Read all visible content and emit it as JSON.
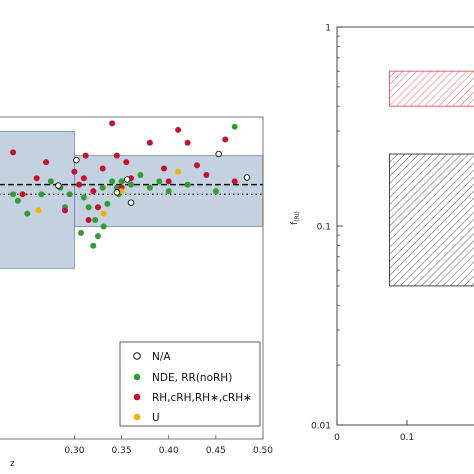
{
  "chart_data": [
    {
      "type": "scatter",
      "xlabel": "z",
      "xlim": [
        0.22,
        0.5
      ],
      "ylim": [
        0,
        1
      ],
      "x_ticks": [
        "0.30",
        "0.35",
        "0.40",
        "0.45",
        "0.50"
      ],
      "x_tick_values": [
        0.3,
        0.35,
        0.4,
        0.45,
        0.5
      ],
      "shaded_regions": [
        {
          "x": [
            0.22,
            0.3
          ],
          "y": [
            0.53,
            0.955
          ]
        },
        {
          "x": [
            0.3,
            0.5
          ],
          "y": [
            0.66,
            0.88
          ]
        }
      ],
      "reference_lines": [
        {
          "style": "dashed",
          "y": 0.79
        },
        {
          "style": "dotted",
          "y": 0.76
        }
      ],
      "legend": {
        "placement": "bottom-right",
        "entries": [
          "N/A",
          "NDE, RR(noRH)",
          "RH,cRH,RH∗,cRH∗",
          "U"
        ]
      },
      "series": [
        {
          "name": "N/A",
          "color": "#ffffff",
          "marker": "open-circle",
          "x": [
            0.302,
            0.356,
            0.36,
            0.453,
            0.483,
            0.345,
            0.283
          ],
          "y": [
            0.866,
            0.806,
            0.734,
            0.885,
            0.812,
            0.766,
            0.787
          ]
        },
        {
          "name": "NDE, RR(noRH)",
          "color": "#2e9e2e",
          "marker": "filled-circle",
          "x": [
            0.235,
            0.24,
            0.25,
            0.265,
            0.275,
            0.285,
            0.29,
            0.295,
            0.305,
            0.31,
            0.315,
            0.32,
            0.325,
            0.33,
            0.335,
            0.34,
            0.345,
            0.35,
            0.36,
            0.37,
            0.38,
            0.39,
            0.4,
            0.42,
            0.45,
            0.47,
            0.307,
            0.322,
            0.331,
            0.347
          ],
          "y": [
            0.76,
            0.74,
            0.7,
            0.76,
            0.8,
            0.78,
            0.72,
            0.76,
            0.79,
            0.75,
            0.72,
            0.6,
            0.63,
            0.78,
            0.73,
            0.8,
            0.78,
            0.8,
            0.79,
            0.82,
            0.78,
            0.8,
            0.77,
            0.79,
            0.77,
            0.97,
            0.64,
            0.68,
            0.66,
            0.76
          ]
        },
        {
          "name": "RH,cRH,RH∗,cRH∗",
          "color": "#c8102e",
          "marker": "filled-circle",
          "x": [
            0.235,
            0.245,
            0.26,
            0.27,
            0.29,
            0.3,
            0.305,
            0.31,
            0.315,
            0.32,
            0.33,
            0.34,
            0.35,
            0.36,
            0.38,
            0.4,
            0.41,
            0.42,
            0.43,
            0.44,
            0.46,
            0.47,
            0.312,
            0.325,
            0.355,
            0.395,
            0.345
          ],
          "y": [
            0.89,
            0.76,
            0.81,
            0.86,
            0.71,
            0.83,
            0.79,
            0.81,
            0.68,
            0.77,
            0.84,
            0.98,
            0.78,
            0.81,
            0.92,
            0.8,
            0.96,
            0.92,
            0.85,
            0.82,
            0.93,
            0.8,
            0.88,
            0.72,
            0.86,
            0.84,
            0.88
          ]
        },
        {
          "name": "U",
          "color": "#f0b400",
          "marker": "filled-circle",
          "x": [
            0.262,
            0.331,
            0.35,
            0.41
          ],
          "y": [
            0.71,
            0.7,
            0.77,
            0.83
          ]
        }
      ]
    },
    {
      "type": "area",
      "ylabel": "f_(RI)",
      "y_scale": "log",
      "ylim": [
        0.01,
        1
      ],
      "xlim": [
        0,
        0.2
      ],
      "x_ticks": [
        "0",
        "0.1"
      ],
      "x_tick_values": [
        0,
        0.1
      ],
      "y_ticks": [
        "0.01",
        "0.1",
        "1"
      ],
      "y_tick_values": [
        0.01,
        0.1,
        1
      ],
      "regions": [
        {
          "name": "",
          "color": "#e0505a",
          "hatch": "diagonal",
          "x": [
            0.075,
            0.2
          ],
          "y": [
            0.4,
            0.6
          ]
        },
        {
          "name": "",
          "color": "#333333",
          "hatch": "diagonal",
          "x": [
            0.075,
            0.2
          ],
          "y": [
            0.05,
            0.23
          ]
        }
      ]
    }
  ]
}
